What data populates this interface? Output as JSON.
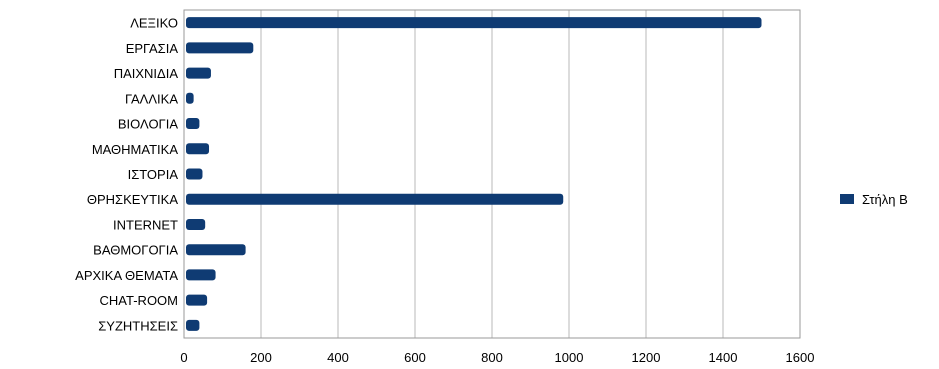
{
  "chart_data": {
    "type": "bar",
    "orientation": "horizontal",
    "categories": [
      "ΛΕΞΙΚΟ",
      "ΕΡΓΑΣΙΑ",
      "ΠΑΙΧΝΙΔΙΑ",
      "ΓΑΛΛΙΚΑ",
      "ΒΙΟΛΟΓΙΑ",
      "ΜΑΘΗΜΑΤΙΚΑ",
      "ΙΣΤΟΡΙΑ",
      "ΘΡΗΣΚΕΥΤΙΚΑ",
      "INTERNET",
      "ΒΑΘΜΟΓΟΓΙΑ",
      "ΑΡΧΙΚΑ ΘΕΜΑΤΑ",
      "CHAT-ROOM",
      "ΣΥΖΗΤΗΣΕΙΣ"
    ],
    "series": [
      {
        "name": "Στήλη Β",
        "values": [
          1500,
          180,
          70,
          25,
          40,
          65,
          48,
          985,
          55,
          160,
          82,
          60,
          40
        ]
      }
    ],
    "xlim": [
      0,
      1600
    ],
    "xticks": [
      0,
      200,
      400,
      600,
      800,
      1000,
      1200,
      1400,
      1600
    ],
    "grid": true,
    "legend_position": "right",
    "bar_color": "#0f3b73",
    "grid_color": "#b8b8b8"
  }
}
